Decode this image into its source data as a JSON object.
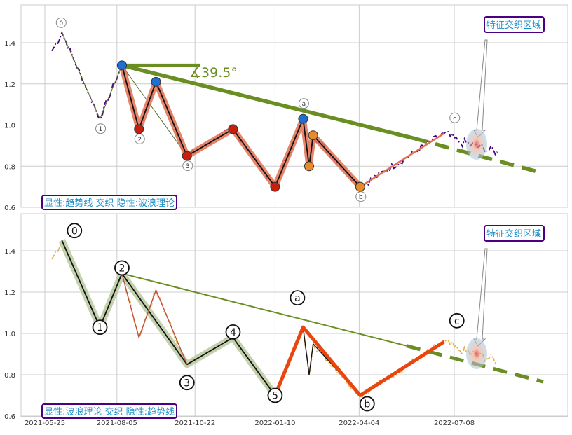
{
  "chart_data": {
    "type": "line",
    "x_ticks": [
      "2021-05-25",
      "2021-08-05",
      "2021-10-22",
      "2022-01-10",
      "2022-04-04",
      "2022-07-08"
    ],
    "y_ticks": [
      "0.6",
      "0.8",
      "1.0",
      "1.2",
      "1.4"
    ],
    "ylim": [
      0.6,
      1.57
    ],
    "grid": true,
    "colors": {
      "price_top": "#4b0082",
      "price_bottom": "#e8b040",
      "trend": "#6b8e23",
      "wave": "#e07050",
      "wave_bottom": "#e8450f",
      "label": "#1f8fc9",
      "label_border": "#4b0082"
    },
    "panels": [
      {
        "box_label": "特征交织区域",
        "footer_label": "显性:趋势线 交织 隐性:波浪理论",
        "angle_label": "∡39.5°",
        "wave_labels": [
          "0",
          "1",
          "2",
          "3",
          "a",
          "b",
          "c"
        ]
      },
      {
        "box_label": "特征交织区域",
        "footer_label": "显性:波浪理论 交织 隐性:趋势线",
        "wave_labels": [
          "0",
          "1",
          "2",
          "3",
          "4",
          "5",
          "a",
          "b",
          "c"
        ]
      }
    ],
    "series": [
      {
        "x": [
          "2021-06-11",
          "2021-07-19",
          "2021-08-10",
          "2021-08-27",
          "2021-09-13",
          "2021-10-14",
          "2021-11-29",
          "2022-01-10",
          "2022-02-07",
          "2022-02-13",
          "2022-02-17",
          "2022-04-05",
          "2022-06-28"
        ],
        "y": [
          1.45,
          1.03,
          1.29,
          0.98,
          1.21,
          0.85,
          0.98,
          0.7,
          1.03,
          0.8,
          0.95,
          0.7,
          0.96
        ]
      }
    ]
  }
}
